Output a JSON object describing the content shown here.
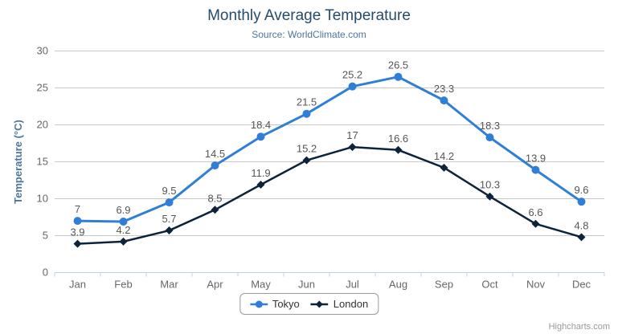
{
  "chart_data": {
    "type": "line",
    "title": "Monthly Average Temperature",
    "subtitle": "Source: WorldClimate.com",
    "categories": [
      "Jan",
      "Feb",
      "Mar",
      "Apr",
      "May",
      "Jun",
      "Jul",
      "Aug",
      "Sep",
      "Oct",
      "Nov",
      "Dec"
    ],
    "series": [
      {
        "name": "Tokyo",
        "color": "#2f7ed8",
        "marker": "circle",
        "line_width": 3,
        "values": [
          7,
          6.9,
          9.5,
          14.5,
          18.4,
          21.5,
          25.2,
          26.5,
          23.3,
          18.3,
          13.9,
          9.6
        ]
      },
      {
        "name": "London",
        "color": "#0d233a",
        "marker": "diamond",
        "line_width": 2.5,
        "values": [
          3.9,
          4.2,
          5.7,
          8.5,
          11.9,
          15.2,
          17,
          16.6,
          14.2,
          10.3,
          6.6,
          4.8
        ]
      }
    ],
    "xlabel": "",
    "ylabel": "Temperature (°C)",
    "ylim": [
      0,
      30
    ],
    "ytick_interval": 5,
    "grid": true,
    "legend_position": "bottom",
    "data_labels": true
  },
  "credits": {
    "label": "Highcharts.com"
  },
  "menu": {
    "icon": "hamburger-icon"
  },
  "colors": {
    "title": "#274b6d",
    "subtitle": "#4d759e",
    "axis_title": "#4d759e",
    "axis_labels": "#666666",
    "data_labels": "#555555",
    "gridline": "#c8c8c8",
    "axis_line": "#c0d0e0",
    "legend_border": "#999999",
    "legend_text": "#333333",
    "credits": "#999999",
    "menu_icon": "#666666",
    "background": "#ffffff"
  }
}
